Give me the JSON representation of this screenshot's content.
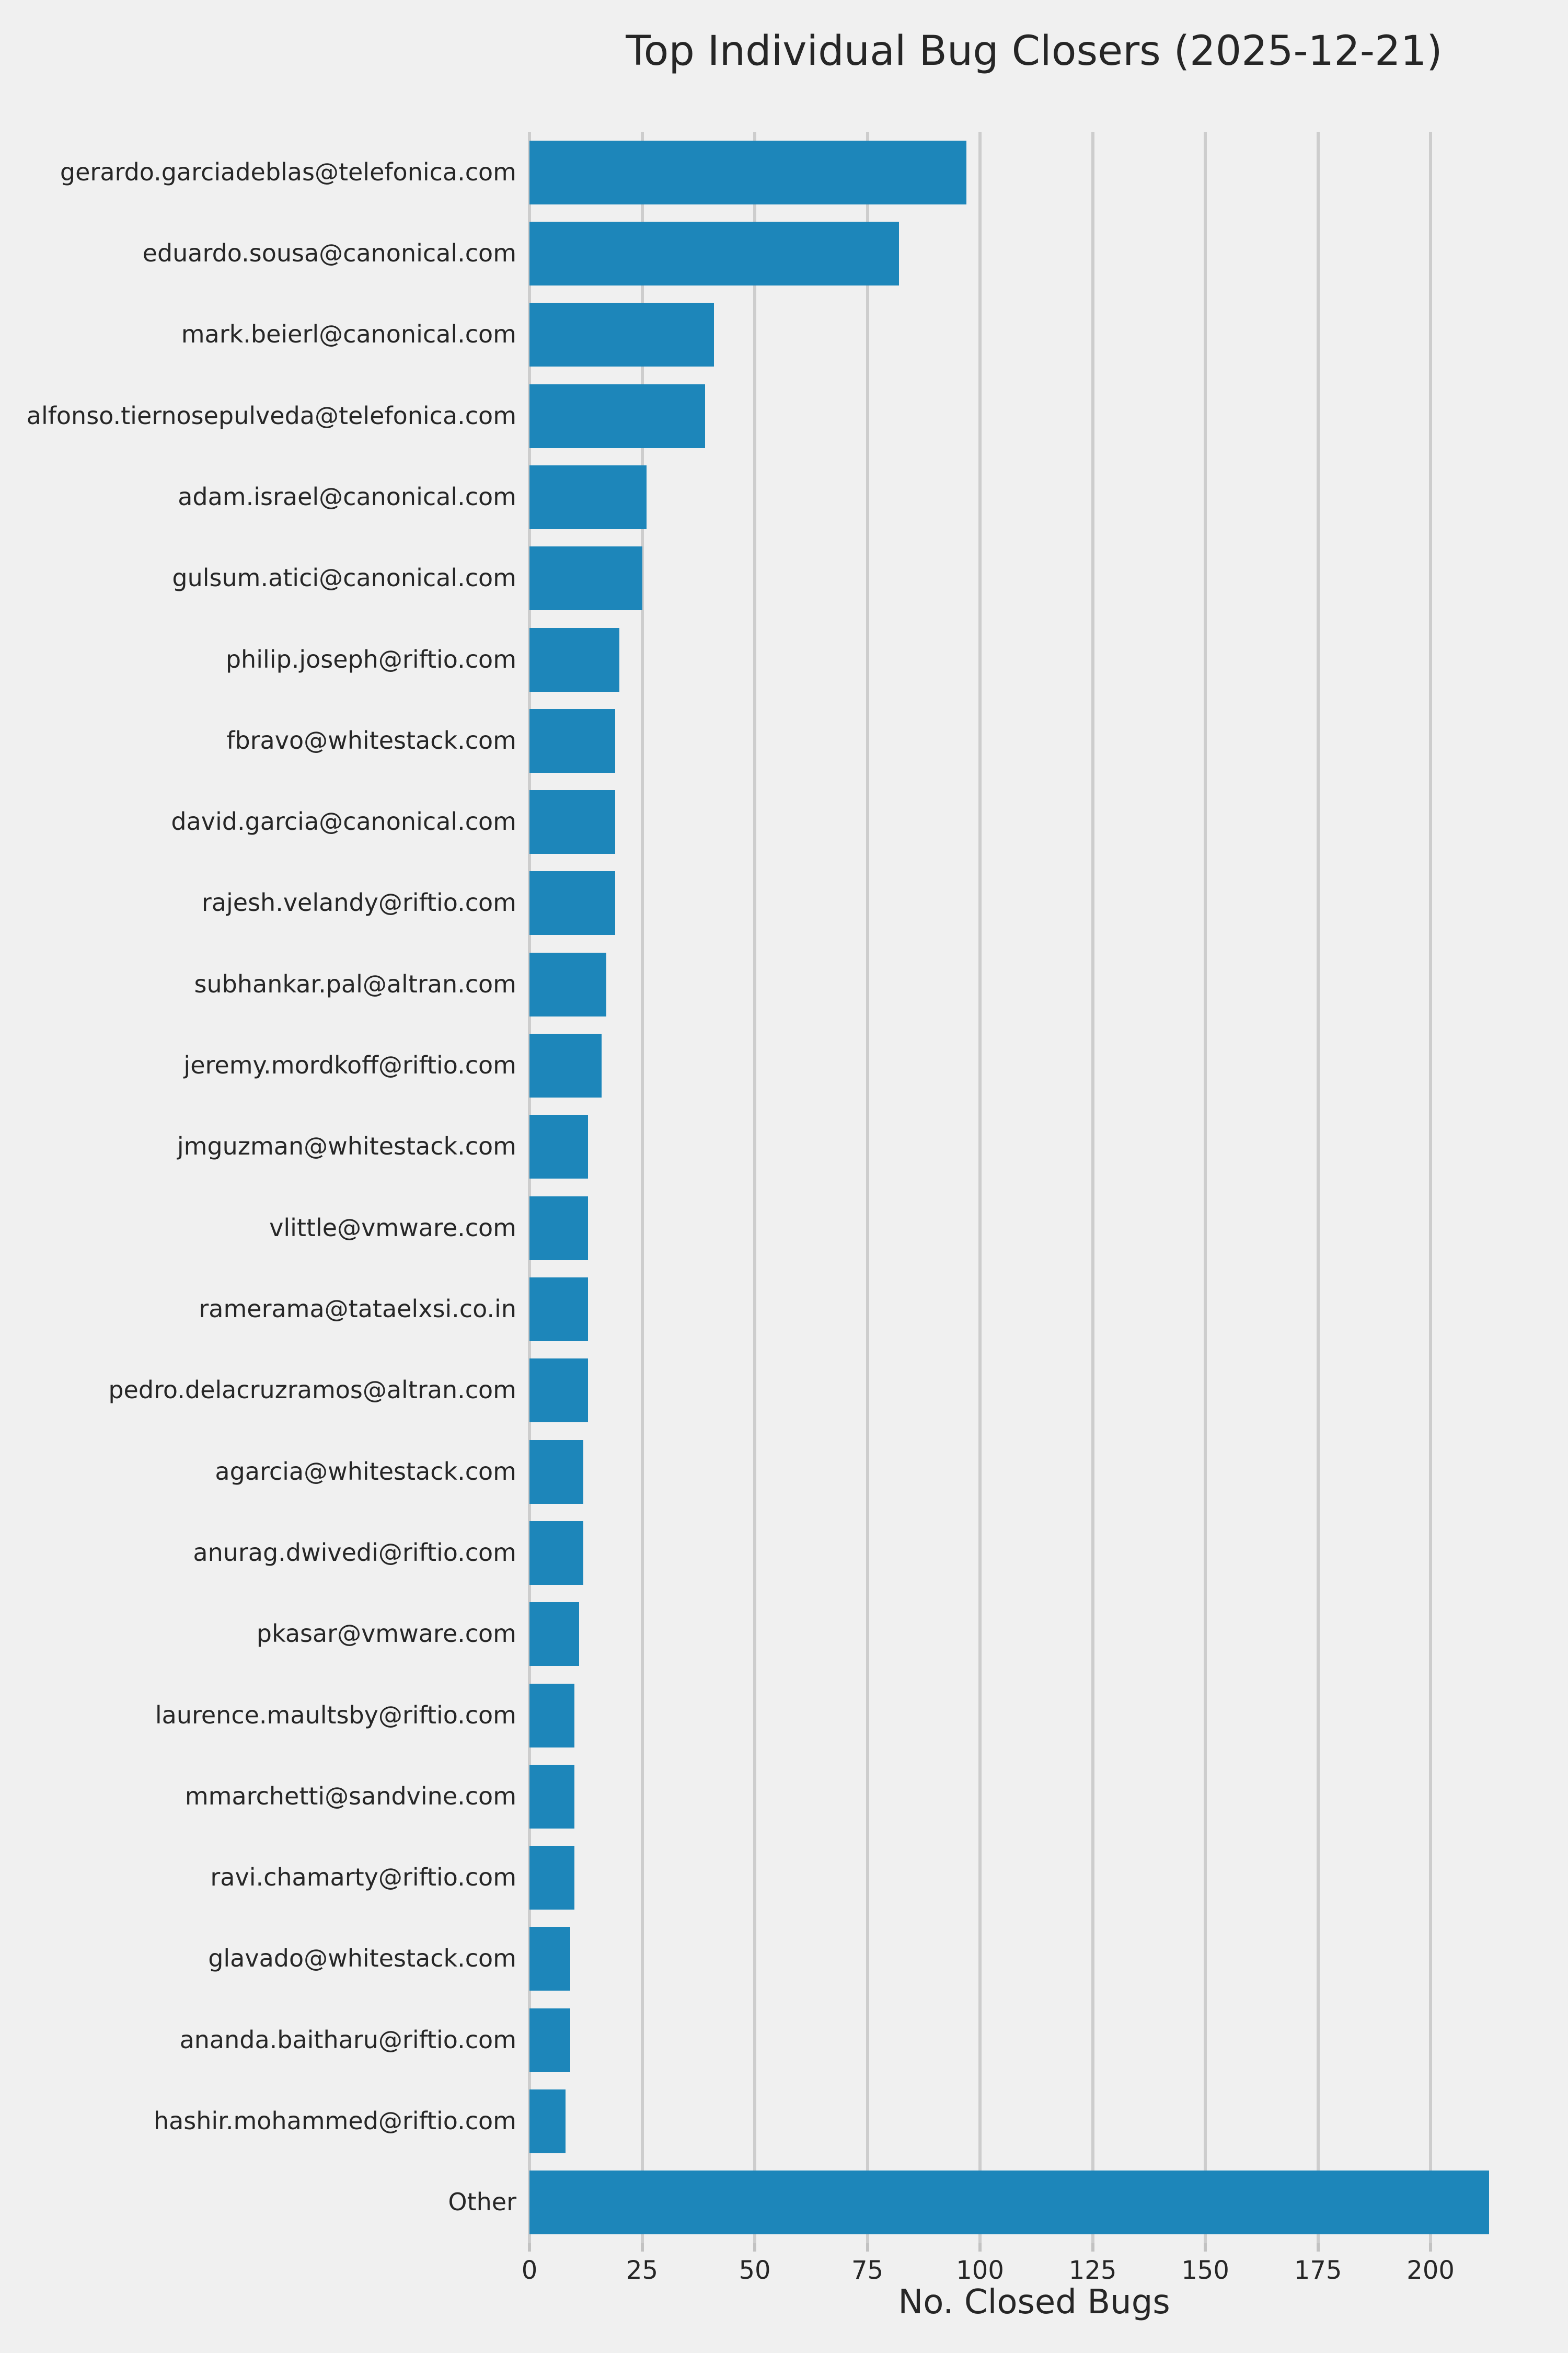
{
  "chart_data": {
    "type": "bar",
    "orientation": "horizontal",
    "title": "Top Individual Bug Closers (2025-12-21)",
    "xlabel": "No. Closed Bugs",
    "ylabel": "",
    "categories": [
      "gerardo.garciadeblas@telefonica.com",
      "eduardo.sousa@canonical.com",
      "mark.beierl@canonical.com",
      "alfonso.tiernosepulveda@telefonica.com",
      "adam.israel@canonical.com",
      "gulsum.atici@canonical.com",
      "philip.joseph@riftio.com",
      "fbravo@whitestack.com",
      "david.garcia@canonical.com",
      "rajesh.velandy@riftio.com",
      "subhankar.pal@altran.com",
      "jeremy.mordkoff@riftio.com",
      "jmguzman@whitestack.com",
      "vlittle@vmware.com",
      "ramerama@tataelxsi.co.in",
      "pedro.delacruzramos@altran.com",
      "agarcia@whitestack.com",
      "anurag.dwivedi@riftio.com",
      "pkasar@vmware.com",
      "laurence.maultsby@riftio.com",
      "mmarchetti@sandvine.com",
      "ravi.chamarty@riftio.com",
      "glavado@whitestack.com",
      "ananda.baitharu@riftio.com",
      "hashir.mohammed@riftio.com",
      "Other"
    ],
    "values": [
      97,
      82,
      41,
      39,
      26,
      25,
      20,
      19,
      19,
      19,
      17,
      16,
      13,
      13,
      13,
      13,
      12,
      12,
      11,
      10,
      10,
      10,
      9,
      9,
      8,
      213
    ],
    "x_ticks": [
      0,
      25,
      50,
      75,
      100,
      125,
      150,
      175,
      200
    ],
    "xlim": [
      0,
      224
    ],
    "grid": true,
    "legend": false,
    "colors": {
      "bar": "#1d86ba",
      "background": "#f0f0f0",
      "grid": "#cdcdcd",
      "text": "#262626"
    }
  }
}
